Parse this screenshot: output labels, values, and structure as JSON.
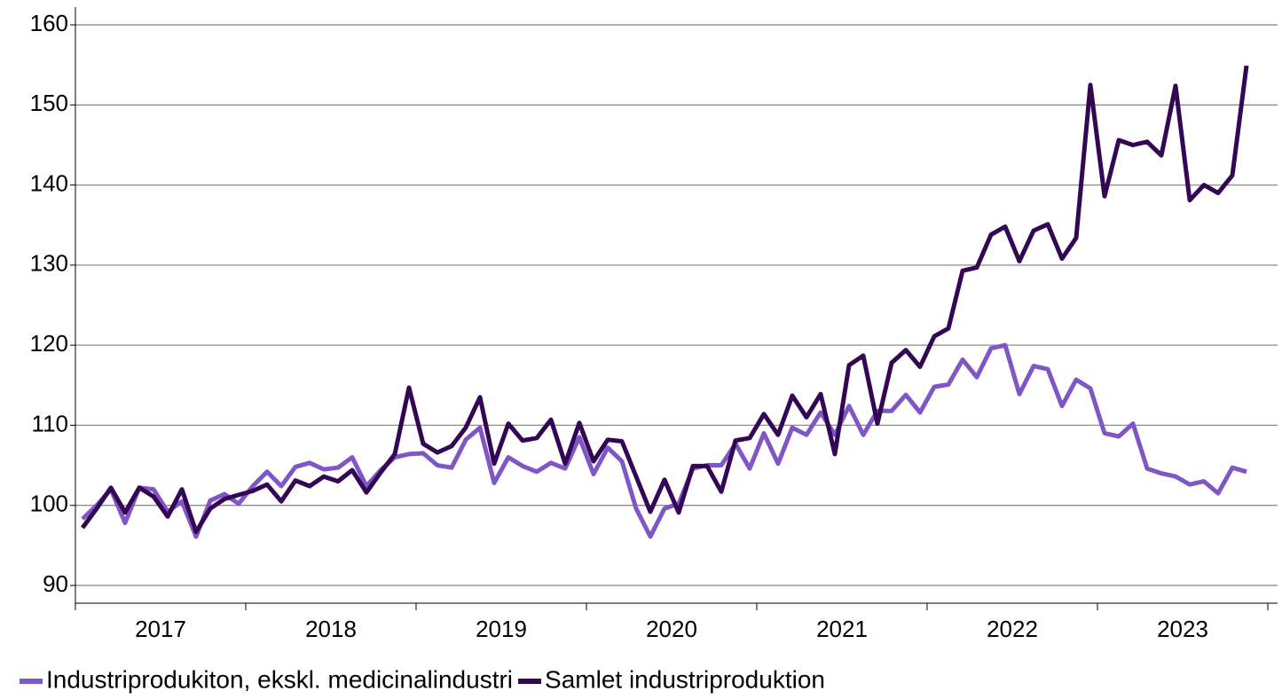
{
  "chart_data": {
    "type": "line",
    "xlabels": [
      "2017",
      "2018",
      "2019",
      "2020",
      "2021",
      "2022",
      "2023"
    ],
    "series": [
      {
        "name": "Industriprodukiton, ekskl. medicinalindustri",
        "color": "#7f56c6",
        "values": [
          98.3,
          100,
          102,
          97.8,
          102.2,
          102,
          99.2,
          100.5,
          96.1,
          100.6,
          101.4,
          100.2,
          102.4,
          104.2,
          102.4,
          104.8,
          105.3,
          104.5,
          104.7,
          106,
          102.4,
          104.4,
          106,
          106.4,
          106.5,
          105,
          104.7,
          108.2,
          109.7,
          102.8,
          106,
          104.9,
          104.2,
          105.3,
          104.6,
          108.5,
          103.9,
          107.2,
          105.5,
          99.6,
          96.1,
          99.6,
          100.2,
          104.6,
          105,
          105,
          107.7,
          104.6,
          109,
          105.2,
          109.7,
          108.8,
          111.6,
          108.8,
          112.4,
          108.8,
          111.8,
          111.8,
          113.8,
          111.6,
          114.8,
          115.1,
          118.2,
          116,
          119.6,
          120,
          113.9,
          117.4,
          117,
          112.4,
          115.7,
          114.6,
          109,
          108.6,
          110.2,
          104.6,
          104,
          103.6,
          102.6,
          103,
          101.5,
          104.7,
          104.2
        ]
      },
      {
        "name": "Samlet industriproduktion",
        "color": "#330754",
        "values": [
          97.2,
          99.6,
          102.2,
          99.1,
          102.2,
          101.1,
          98.6,
          102,
          96.7,
          99.6,
          100.8,
          101.3,
          101.8,
          102.6,
          100.5,
          103.1,
          102.4,
          103.6,
          103,
          104.4,
          101.6,
          104.1,
          106.4,
          114.7,
          107.7,
          106.6,
          107.4,
          109.7,
          113.5,
          105.2,
          110.2,
          108.1,
          108.4,
          110.7,
          105.2,
          110.3,
          105.5,
          108.2,
          108,
          103.6,
          99.2,
          103.2,
          99.1,
          104.9,
          104.9,
          101.7,
          108.1,
          108.4,
          111.4,
          108.8,
          113.7,
          111,
          113.9,
          106.4,
          117.5,
          118.7,
          110.2,
          117.8,
          119.4,
          117.3,
          121.1,
          122.1,
          129.3,
          129.7,
          133.8,
          134.8,
          130.5,
          134.3,
          135.1,
          130.8,
          133.4,
          152.5,
          138.6,
          145.6,
          145,
          145.4,
          143.7,
          152.4,
          138.1,
          140,
          139,
          141.2,
          154.9
        ]
      }
    ],
    "ylim": [
      88,
      162
    ],
    "yticks": [
      90,
      100,
      110,
      120,
      130,
      140,
      150,
      160
    ],
    "grid": true
  }
}
